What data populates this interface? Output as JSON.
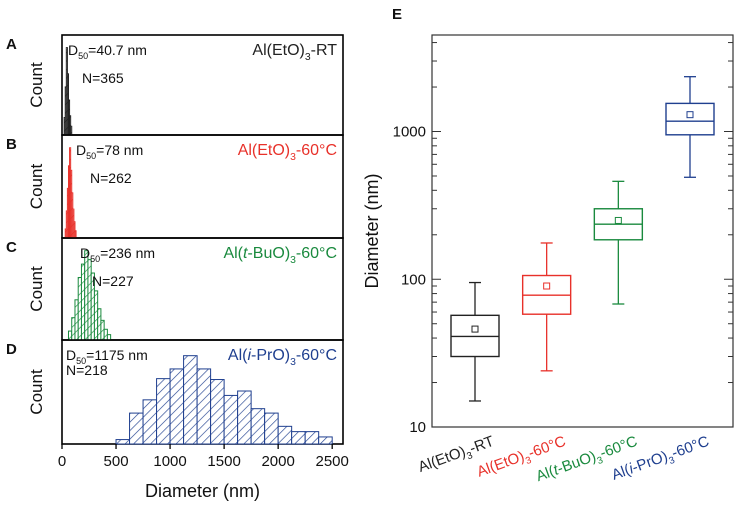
{
  "colors": {
    "rt": "#222222",
    "etoh60": "#e8312a",
    "tbuo": "#1a8a3e",
    "ipro": "#1f3f8f"
  },
  "chart_data": [
    {
      "panel": "A",
      "type": "histogram",
      "legend": "Al(EtO)3-RT",
      "legend_parts": {
        "pre": "Al(EtO)",
        "sub": "3",
        "post": "-RT"
      },
      "stats": {
        "d50_prefix": "D",
        "d50_sub": "50",
        "d50_value": "=40.7 nm",
        "n": "N=365"
      },
      "ylabel": "Count",
      "xlim": [
        0,
        2600
      ],
      "bin_width": 10,
      "bins": [
        [
          20,
          0.2
        ],
        [
          30,
          0.55
        ],
        [
          40,
          1.0
        ],
        [
          50,
          0.7
        ],
        [
          60,
          0.4
        ],
        [
          70,
          0.22
        ],
        [
          80,
          0.1
        ]
      ]
    },
    {
      "panel": "B",
      "type": "histogram",
      "legend": "Al(EtO)3-60°C",
      "legend_parts": {
        "pre": "Al(EtO)",
        "sub": "3",
        "post": "-60°C"
      },
      "stats": {
        "d50_prefix": "D",
        "d50_sub": "50",
        "d50_value": "=78 nm",
        "n": "N=262"
      },
      "ylabel": "Count",
      "xlim": [
        0,
        2600
      ],
      "bin_width": 10,
      "bins": [
        [
          30,
          0.1
        ],
        [
          40,
          0.3
        ],
        [
          50,
          0.55
        ],
        [
          60,
          0.8
        ],
        [
          70,
          1.0
        ],
        [
          80,
          0.75
        ],
        [
          90,
          0.5
        ],
        [
          100,
          0.32
        ],
        [
          110,
          0.18
        ],
        [
          120,
          0.08
        ]
      ]
    },
    {
      "panel": "C",
      "type": "histogram",
      "legend": "Al(t-BuO)3-60°C",
      "legend_parts": {
        "pre": "Al(",
        "ital": "t",
        "mid": "-BuO)",
        "sub": "3",
        "post": "-60°C"
      },
      "stats": {
        "d50_prefix": "D",
        "d50_sub": "50",
        "d50_value": "=236 nm",
        "n": "N=227"
      },
      "ylabel": "Count",
      "xlim": [
        0,
        2600
      ],
      "bin_width": 30,
      "bins": [
        [
          60,
          0.1
        ],
        [
          90,
          0.25
        ],
        [
          120,
          0.45
        ],
        [
          150,
          0.7
        ],
        [
          180,
          0.85
        ],
        [
          210,
          1.0
        ],
        [
          240,
          0.9
        ],
        [
          270,
          0.75
        ],
        [
          300,
          0.55
        ],
        [
          330,
          0.35
        ],
        [
          360,
          0.22
        ],
        [
          390,
          0.12
        ],
        [
          420,
          0.06
        ]
      ]
    },
    {
      "panel": "D",
      "type": "histogram",
      "legend": "Al(i-PrO)3-60°C",
      "legend_parts": {
        "pre": "Al(",
        "ital": "i",
        "mid": "-PrO)",
        "sub": "3",
        "post": "-60°C"
      },
      "stats": {
        "d50_prefix": "D",
        "d50_sub": "50",
        "d50_value": "=1175 nm",
        "n": "N=218"
      },
      "ylabel": "Count",
      "xlabel": "Diameter (nm)",
      "xlim": [
        0,
        2600
      ],
      "xticks": [
        0,
        500,
        1000,
        1500,
        2000,
        2500
      ],
      "bin_width": 125,
      "bins": [
        [
          500,
          0.05
        ],
        [
          625,
          0.35
        ],
        [
          750,
          0.5
        ],
        [
          875,
          0.74
        ],
        [
          1000,
          0.85
        ],
        [
          1125,
          1.0
        ],
        [
          1250,
          0.85
        ],
        [
          1375,
          0.73
        ],
        [
          1500,
          0.55
        ],
        [
          1625,
          0.6
        ],
        [
          1750,
          0.4
        ],
        [
          1875,
          0.35
        ],
        [
          2000,
          0.2
        ],
        [
          2125,
          0.14
        ],
        [
          2250,
          0.14
        ],
        [
          2375,
          0.08
        ]
      ]
    },
    {
      "panel": "E",
      "type": "box",
      "ylabel": "Diameter (nm)",
      "yscale": "log",
      "ylim": [
        10,
        4500
      ],
      "yticks": [
        10,
        100,
        1000
      ],
      "categories": [
        {
          "label": "Al(EtO)3-RT",
          "parts": {
            "pre": "Al(EtO)",
            "sub": "3",
            "post": "-RT"
          },
          "color_key": "rt",
          "whisker_low": 15,
          "q1": 30,
          "median": 41,
          "q3": 57,
          "whisker_high": 95,
          "mean": 46
        },
        {
          "label": "Al(EtO)3-60°C",
          "parts": {
            "pre": "Al(EtO)",
            "sub": "3",
            "post": "-60°C"
          },
          "color_key": "etoh60",
          "whisker_low": 24,
          "q1": 58,
          "median": 78,
          "q3": 106,
          "whisker_high": 176,
          "mean": 90
        },
        {
          "label": "Al(t-BuO)3-60°C",
          "parts": {
            "pre": "Al(",
            "ital": "t",
            "mid": "-BuO)",
            "sub": "3",
            "post": "-60°C"
          },
          "color_key": "tbuo",
          "whisker_low": 68,
          "q1": 185,
          "median": 236,
          "q3": 300,
          "whisker_high": 460,
          "mean": 250
        },
        {
          "label": "Al(i-PrO)3-60°C",
          "parts": {
            "pre": "Al(",
            "ital": "i",
            "mid": "-PrO)",
            "sub": "3",
            "post": "-60°C"
          },
          "color_key": "ipro",
          "whisker_low": 490,
          "q1": 950,
          "median": 1175,
          "q3": 1550,
          "whisker_high": 2350,
          "mean": 1300
        }
      ]
    }
  ]
}
